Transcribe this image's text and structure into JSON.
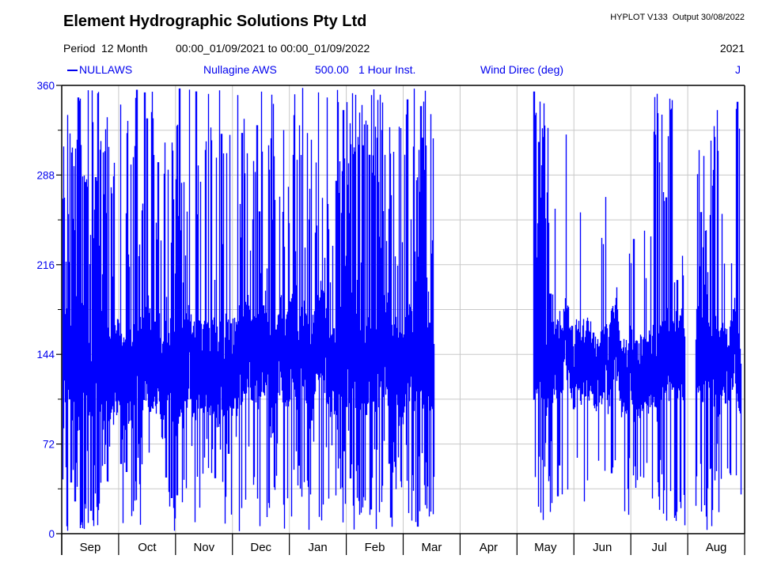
{
  "header": {
    "title": "Element Hydrographic Solutions Pty Ltd",
    "hyplot": "HYPLOT V133  Output 30/08/2022",
    "period_label": "Period",
    "period_duration": "12 Month",
    "period_range": "00:00_01/09/2021 to 00:00_01/09/2022",
    "year": "2021"
  },
  "legend": {
    "station_id": "NULLAWS",
    "station_name": "Nullagine AWS",
    "number": "500.00",
    "interval": "1 Hour Inst.",
    "variable": "Wind Direc (deg)",
    "quality_code": "J",
    "color": "#0000ee"
  },
  "chart_data": {
    "type": "line",
    "title": "",
    "xlabel": "",
    "ylabel": "Wind Direc (deg)",
    "series_name": "NULLAWS Nullagine AWS",
    "sampling": "1 Hour Inst.",
    "x_start": "00:00 01/09/2021",
    "x_end": "00:00 01/09/2022",
    "months": [
      "Sep",
      "Oct",
      "Nov",
      "Dec",
      "Jan",
      "Feb",
      "Mar",
      "Apr",
      "May",
      "Jun",
      "Jul",
      "Aug"
    ],
    "ylim": [
      0,
      360
    ],
    "y_major_ticks": [
      360,
      288,
      216,
      144,
      72,
      0
    ],
    "y_minor_step": 36,
    "grid": true,
    "legend_position": "top",
    "line_color": "#0000ff",
    "axis_label_color": "#0000ee",
    "grid_color": "#c8c8c8",
    "frame_color": "#000000",
    "seed": 42,
    "hours_per_column": 10,
    "wild": {
      "noise": 38,
      "hi_p": 0.13,
      "hi_range": [
        190,
        358
      ],
      "lo_p": 0.085,
      "lo_range": [
        2,
        85
      ]
    },
    "segments": [
      {
        "start": 0.0,
        "end": 6.53,
        "mode": "wild"
      },
      {
        "start": 6.53,
        "end": 8.26,
        "mode": "gap"
      },
      {
        "start": 8.26,
        "end": 8.62,
        "mode": "wild"
      },
      {
        "start": 8.62,
        "end": 9.44,
        "mode": "calm",
        "noise": 28,
        "hi_p": 0.018,
        "hi_range": [
          200,
          322
        ],
        "lo_p": 0.02,
        "lo_range": [
          20,
          70
        ]
      },
      {
        "start": 9.44,
        "end": 9.56,
        "mode": "calm",
        "noise": 28,
        "hi_p": 0.035,
        "hi_range": [
          230,
          356
        ],
        "lo_p": 0.02,
        "lo_range": [
          20,
          70
        ]
      },
      {
        "start": 9.56,
        "end": 10.35,
        "mode": "calm",
        "noise": 30,
        "hi_p": 0.012,
        "hi_range": [
          190,
          245
        ],
        "lo_p": 0.04,
        "lo_range": [
          15,
          70
        ]
      },
      {
        "start": 10.35,
        "end": 10.72,
        "mode": "calm",
        "noise": 30,
        "hi_p": 0.05,
        "hi_range": [
          240,
          355
        ],
        "lo_p": 0.03,
        "lo_range": [
          10,
          60
        ]
      },
      {
        "start": 10.72,
        "end": 10.93,
        "mode": "calm",
        "noise": 30,
        "hi_p": 0.006,
        "hi_range": [
          190,
          230
        ],
        "lo_p": 0.06,
        "lo_range": [
          2,
          40
        ]
      },
      {
        "start": 10.93,
        "end": 11.12,
        "mode": "gap"
      },
      {
        "start": 11.12,
        "end": 11.55,
        "mode": "wild"
      },
      {
        "start": 11.55,
        "end": 11.82,
        "mode": "calm",
        "noise": 34,
        "hi_p": 0.02,
        "hi_range": [
          200,
          260
        ],
        "lo_p": 0.03,
        "lo_range": [
          25,
          60
        ]
      },
      {
        "start": 11.82,
        "end": 11.9,
        "mode": "calm",
        "noise": 30,
        "hi_p": 0.07,
        "hi_range": [
          300,
          356
        ],
        "lo_p": 0.01,
        "lo_range": [
          40,
          70
        ]
      },
      {
        "start": 11.9,
        "end": 11.93,
        "mode": "calm",
        "noise": 28,
        "hi_p": 0.0,
        "hi_range": [
          190,
          220
        ],
        "lo_p": 0.06,
        "lo_range": [
          25,
          60
        ]
      }
    ]
  }
}
